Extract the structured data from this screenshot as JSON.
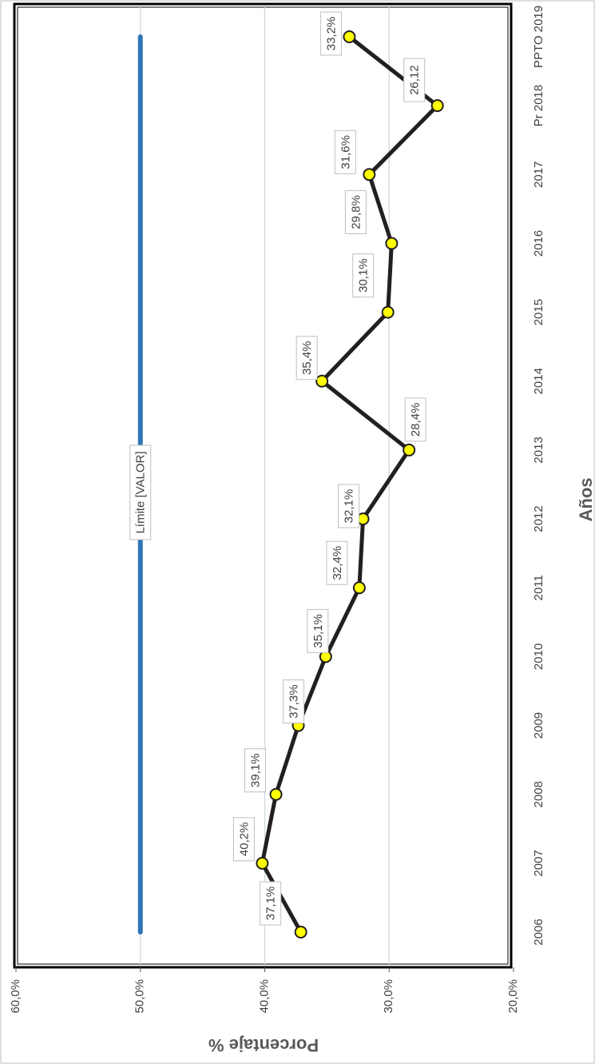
{
  "chart_data": {
    "type": "line",
    "xlabel": "Años",
    "ylabel": "Porcentaje %",
    "categories": [
      "2006",
      "2007",
      "2008",
      "2009",
      "2010",
      "2011",
      "2012",
      "2013",
      "2014",
      "2015",
      "2016",
      "2017",
      "Pr 2018",
      "PPTO 2019"
    ],
    "series": [
      {
        "color": "#2e75b6",
        "label": "Límite [VALOR]",
        "values": [
          50,
          50,
          50,
          50,
          50,
          50,
          50,
          50,
          50,
          50,
          50,
          50,
          50,
          50
        ]
      },
      {
        "color": "#231f20",
        "marker_color": "#ffff00",
        "values": [
          37.1,
          40.2,
          39.1,
          37.3,
          35.1,
          32.4,
          32.1,
          28.4,
          35.4,
          30.1,
          29.8,
          31.6,
          26.12,
          33.2
        ],
        "value_labels": [
          "37,1%",
          "40,2%",
          "39,1%",
          "37,3%",
          "35,1%",
          "32,4%",
          "32,1%",
          "28,4%",
          "35,4%",
          "30,1%",
          "29,8%",
          "31,6%",
          "26,12",
          "33,2%"
        ]
      }
    ],
    "ylim": [
      20,
      60
    ],
    "yticks": [
      {
        "value": 20,
        "label": "20,0%"
      },
      {
        "value": 30,
        "label": "30,0%"
      },
      {
        "value": 40,
        "label": "40,0%"
      },
      {
        "value": 50,
        "label": "50,0%"
      },
      {
        "value": 60,
        "label": "60,0%"
      }
    ],
    "grid": true
  }
}
